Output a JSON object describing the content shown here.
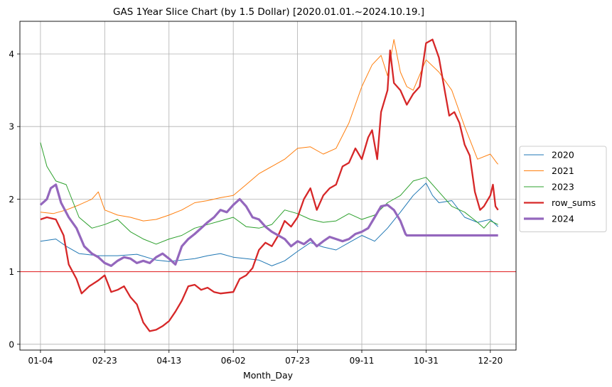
{
  "chart_data": {
    "type": "line",
    "title": "GAS 1Year Slice Chart (by 1.5 Dollar) [2020.01.01.~2024.10.19.]",
    "xlabel": "Month_Day",
    "ylabel": "",
    "x_ticks": [
      "01-04",
      "02-23",
      "04-13",
      "06-02",
      "07-23",
      "09-11",
      "10-31",
      "12-20"
    ],
    "x_range_days": [
      -16,
      370
    ],
    "y_ticks": [
      "0",
      "1",
      "2",
      "3",
      "4"
    ],
    "ylim": [
      -0.08,
      4.45
    ],
    "grid": true,
    "legend_position": "center-right",
    "reference_line": {
      "y": 1.0,
      "color": "#e31a1c"
    },
    "series": [
      {
        "name": "2020",
        "color": "#1f77b4",
        "width": 1,
        "points": [
          [
            0,
            1.42
          ],
          [
            12,
            1.45
          ],
          [
            20,
            1.35
          ],
          [
            30,
            1.25
          ],
          [
            45,
            1.22
          ],
          [
            60,
            1.22
          ],
          [
            75,
            1.24
          ],
          [
            90,
            1.16
          ],
          [
            100,
            1.14
          ],
          [
            110,
            1.16
          ],
          [
            120,
            1.18
          ],
          [
            130,
            1.22
          ],
          [
            140,
            1.25
          ],
          [
            150,
            1.2
          ],
          [
            160,
            1.18
          ],
          [
            170,
            1.16
          ],
          [
            180,
            1.08
          ],
          [
            190,
            1.15
          ],
          [
            200,
            1.28
          ],
          [
            210,
            1.4
          ],
          [
            220,
            1.34
          ],
          [
            230,
            1.3
          ],
          [
            240,
            1.4
          ],
          [
            250,
            1.5
          ],
          [
            260,
            1.42
          ],
          [
            270,
            1.6
          ],
          [
            280,
            1.82
          ],
          [
            290,
            2.05
          ],
          [
            300,
            2.22
          ],
          [
            305,
            2.05
          ],
          [
            310,
            1.95
          ],
          [
            320,
            1.98
          ],
          [
            330,
            1.75
          ],
          [
            340,
            1.68
          ],
          [
            350,
            1.72
          ],
          [
            356,
            1.62
          ]
        ]
      },
      {
        "name": "2021",
        "color": "#ff7f0e",
        "width": 1,
        "points": [
          [
            0,
            1.82
          ],
          [
            10,
            1.8
          ],
          [
            20,
            1.85
          ],
          [
            30,
            1.92
          ],
          [
            40,
            2.0
          ],
          [
            45,
            2.1
          ],
          [
            50,
            1.85
          ],
          [
            60,
            1.78
          ],
          [
            70,
            1.75
          ],
          [
            80,
            1.7
          ],
          [
            90,
            1.72
          ],
          [
            100,
            1.78
          ],
          [
            110,
            1.85
          ],
          [
            120,
            1.95
          ],
          [
            130,
            1.98
          ],
          [
            140,
            2.02
          ],
          [
            150,
            2.05
          ],
          [
            160,
            2.2
          ],
          [
            170,
            2.35
          ],
          [
            180,
            2.45
          ],
          [
            190,
            2.55
          ],
          [
            200,
            2.7
          ],
          [
            210,
            2.72
          ],
          [
            220,
            2.62
          ],
          [
            230,
            2.7
          ],
          [
            240,
            3.05
          ],
          [
            250,
            3.55
          ],
          [
            258,
            3.85
          ],
          [
            265,
            3.98
          ],
          [
            270,
            3.7
          ],
          [
            275,
            4.2
          ],
          [
            280,
            3.75
          ],
          [
            285,
            3.55
          ],
          [
            290,
            3.5
          ],
          [
            300,
            3.92
          ],
          [
            310,
            3.75
          ],
          [
            320,
            3.5
          ],
          [
            330,
            3.0
          ],
          [
            340,
            2.55
          ],
          [
            350,
            2.62
          ],
          [
            355,
            2.5
          ],
          [
            356,
            2.48
          ]
        ]
      },
      {
        "name": "2023",
        "color": "#2ca02c",
        "width": 1,
        "points": [
          [
            0,
            2.78
          ],
          [
            5,
            2.45
          ],
          [
            12,
            2.25
          ],
          [
            20,
            2.2
          ],
          [
            30,
            1.75
          ],
          [
            40,
            1.6
          ],
          [
            50,
            1.65
          ],
          [
            60,
            1.72
          ],
          [
            70,
            1.55
          ],
          [
            80,
            1.45
          ],
          [
            90,
            1.38
          ],
          [
            100,
            1.45
          ],
          [
            110,
            1.5
          ],
          [
            120,
            1.6
          ],
          [
            130,
            1.65
          ],
          [
            140,
            1.7
          ],
          [
            150,
            1.75
          ],
          [
            160,
            1.62
          ],
          [
            170,
            1.6
          ],
          [
            180,
            1.65
          ],
          [
            190,
            1.85
          ],
          [
            200,
            1.8
          ],
          [
            210,
            1.72
          ],
          [
            220,
            1.68
          ],
          [
            230,
            1.7
          ],
          [
            240,
            1.8
          ],
          [
            250,
            1.72
          ],
          [
            260,
            1.78
          ],
          [
            270,
            1.95
          ],
          [
            280,
            2.05
          ],
          [
            290,
            2.25
          ],
          [
            300,
            2.3
          ],
          [
            310,
            2.1
          ],
          [
            320,
            1.9
          ],
          [
            330,
            1.82
          ],
          [
            340,
            1.68
          ],
          [
            345,
            1.6
          ],
          [
            350,
            1.7
          ],
          [
            356,
            1.65
          ]
        ]
      },
      {
        "name": "row_sums",
        "color": "#d62728",
        "width": 2.3,
        "points": [
          [
            0,
            1.72
          ],
          [
            5,
            1.75
          ],
          [
            12,
            1.72
          ],
          [
            18,
            1.5
          ],
          [
            22,
            1.1
          ],
          [
            28,
            0.9
          ],
          [
            32,
            0.7
          ],
          [
            38,
            0.8
          ],
          [
            45,
            0.88
          ],
          [
            50,
            0.95
          ],
          [
            55,
            0.72
          ],
          [
            60,
            0.75
          ],
          [
            65,
            0.8
          ],
          [
            70,
            0.65
          ],
          [
            75,
            0.55
          ],
          [
            80,
            0.3
          ],
          [
            85,
            0.18
          ],
          [
            90,
            0.2
          ],
          [
            95,
            0.25
          ],
          [
            100,
            0.32
          ],
          [
            105,
            0.45
          ],
          [
            110,
            0.6
          ],
          [
            115,
            0.8
          ],
          [
            120,
            0.82
          ],
          [
            125,
            0.75
          ],
          [
            130,
            0.78
          ],
          [
            135,
            0.72
          ],
          [
            140,
            0.7
          ],
          [
            150,
            0.72
          ],
          [
            155,
            0.9
          ],
          [
            160,
            0.95
          ],
          [
            165,
            1.05
          ],
          [
            170,
            1.3
          ],
          [
            175,
            1.4
          ],
          [
            180,
            1.35
          ],
          [
            185,
            1.5
          ],
          [
            190,
            1.7
          ],
          [
            195,
            1.62
          ],
          [
            200,
            1.75
          ],
          [
            205,
            2.0
          ],
          [
            210,
            2.15
          ],
          [
            215,
            1.85
          ],
          [
            220,
            2.05
          ],
          [
            225,
            2.15
          ],
          [
            230,
            2.2
          ],
          [
            235,
            2.45
          ],
          [
            240,
            2.5
          ],
          [
            245,
            2.7
          ],
          [
            250,
            2.55
          ],
          [
            255,
            2.85
          ],
          [
            258,
            2.95
          ],
          [
            262,
            2.55
          ],
          [
            265,
            3.2
          ],
          [
            270,
            3.5
          ],
          [
            272,
            4.05
          ],
          [
            275,
            3.6
          ],
          [
            280,
            3.5
          ],
          [
            285,
            3.3
          ],
          [
            290,
            3.45
          ],
          [
            295,
            3.55
          ],
          [
            300,
            4.15
          ],
          [
            305,
            4.2
          ],
          [
            310,
            3.95
          ],
          [
            315,
            3.45
          ],
          [
            318,
            3.15
          ],
          [
            322,
            3.2
          ],
          [
            326,
            3.05
          ],
          [
            330,
            2.75
          ],
          [
            334,
            2.6
          ],
          [
            338,
            2.1
          ],
          [
            342,
            1.85
          ],
          [
            345,
            1.9
          ],
          [
            350,
            2.05
          ],
          [
            352,
            2.2
          ],
          [
            354,
            1.9
          ],
          [
            356,
            1.85
          ]
        ]
      },
      {
        "name": "2024",
        "color": "#9467bd",
        "width": 3.2,
        "points": [
          [
            0,
            1.92
          ],
          [
            5,
            2.0
          ],
          [
            8,
            2.15
          ],
          [
            12,
            2.2
          ],
          [
            16,
            1.95
          ],
          [
            22,
            1.75
          ],
          [
            28,
            1.6
          ],
          [
            34,
            1.35
          ],
          [
            40,
            1.25
          ],
          [
            45,
            1.2
          ],
          [
            50,
            1.12
          ],
          [
            55,
            1.08
          ],
          [
            60,
            1.15
          ],
          [
            65,
            1.2
          ],
          [
            70,
            1.18
          ],
          [
            75,
            1.12
          ],
          [
            80,
            1.15
          ],
          [
            85,
            1.12
          ],
          [
            90,
            1.2
          ],
          [
            95,
            1.25
          ],
          [
            100,
            1.18
          ],
          [
            105,
            1.1
          ],
          [
            110,
            1.35
          ],
          [
            115,
            1.45
          ],
          [
            120,
            1.52
          ],
          [
            125,
            1.6
          ],
          [
            130,
            1.68
          ],
          [
            135,
            1.75
          ],
          [
            140,
            1.85
          ],
          [
            145,
            1.82
          ],
          [
            150,
            1.92
          ],
          [
            155,
            2.0
          ],
          [
            160,
            1.9
          ],
          [
            165,
            1.75
          ],
          [
            170,
            1.72
          ],
          [
            175,
            1.62
          ],
          [
            180,
            1.55
          ],
          [
            185,
            1.5
          ],
          [
            190,
            1.45
          ],
          [
            195,
            1.35
          ],
          [
            200,
            1.42
          ],
          [
            205,
            1.38
          ],
          [
            210,
            1.45
          ],
          [
            215,
            1.35
          ],
          [
            220,
            1.42
          ],
          [
            225,
            1.48
          ],
          [
            230,
            1.45
          ],
          [
            235,
            1.42
          ],
          [
            240,
            1.45
          ],
          [
            245,
            1.52
          ],
          [
            250,
            1.55
          ],
          [
            255,
            1.6
          ],
          [
            260,
            1.75
          ],
          [
            265,
            1.9
          ],
          [
            270,
            1.92
          ],
          [
            275,
            1.85
          ],
          [
            280,
            1.7
          ],
          [
            284,
            1.52
          ],
          [
            285,
            1.5
          ],
          [
            356,
            1.5
          ]
        ]
      }
    ]
  }
}
